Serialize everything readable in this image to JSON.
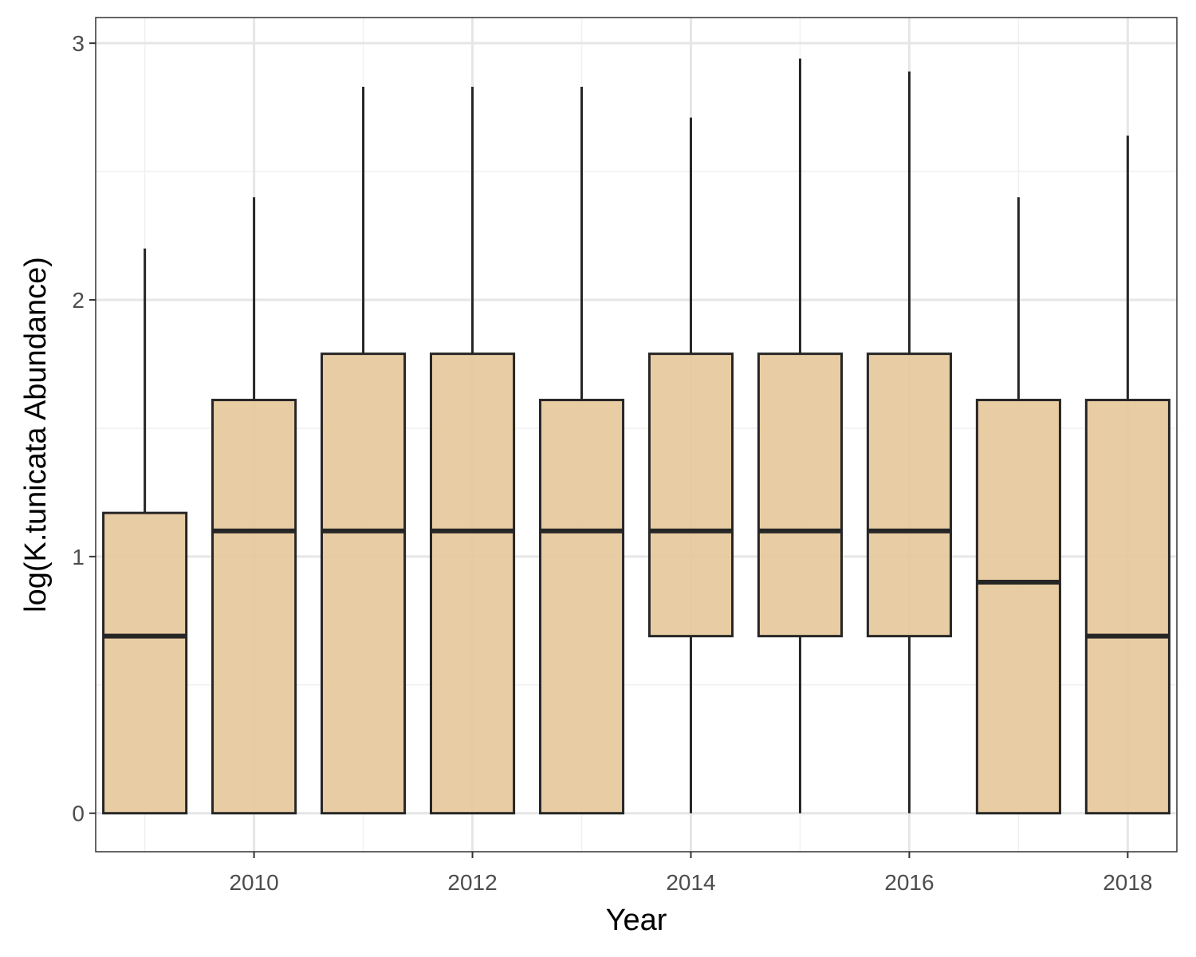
{
  "chart_data": {
    "type": "box",
    "xlabel": "Year",
    "ylabel": "log(K.tunicata Abundance)",
    "xlim": [
      2008.55,
      2018.45
    ],
    "ylim": [
      -0.15,
      3.1
    ],
    "x_ticks": [
      2010,
      2012,
      2014,
      2016,
      2018
    ],
    "y_ticks": [
      0,
      1,
      2,
      3
    ],
    "grid": true,
    "colors": {
      "box_fill": "#e6c89b",
      "box_stroke": "#262626",
      "grid_major": "#e6e6e6",
      "grid_minor": "#f0f0f0",
      "panel_border": "#333333"
    },
    "boxes": [
      {
        "x": 2009,
        "min": 0,
        "q1": 0,
        "median": 0.69,
        "q3": 1.17,
        "max": 2.2
      },
      {
        "x": 2010,
        "min": 0,
        "q1": 0,
        "median": 1.1,
        "q3": 1.61,
        "max": 2.4
      },
      {
        "x": 2011,
        "min": 0,
        "q1": 0,
        "median": 1.1,
        "q3": 1.79,
        "max": 2.83
      },
      {
        "x": 2012,
        "min": 0,
        "q1": 0,
        "median": 1.1,
        "q3": 1.79,
        "max": 2.83
      },
      {
        "x": 2013,
        "min": 0,
        "q1": 0,
        "median": 1.1,
        "q3": 1.61,
        "max": 2.83
      },
      {
        "x": 2014,
        "min": 0,
        "q1": 0.69,
        "median": 1.1,
        "q3": 1.79,
        "max": 2.71
      },
      {
        "x": 2015,
        "min": 0,
        "q1": 0.69,
        "median": 1.1,
        "q3": 1.79,
        "max": 2.94
      },
      {
        "x": 2016,
        "min": 0,
        "q1": 0.69,
        "median": 1.1,
        "q3": 1.79,
        "max": 2.89
      },
      {
        "x": 2017,
        "min": 0,
        "q1": 0,
        "median": 0.9,
        "q3": 1.61,
        "max": 2.4
      },
      {
        "x": 2018,
        "min": 0,
        "q1": 0,
        "median": 0.69,
        "q3": 1.61,
        "max": 2.64
      }
    ]
  }
}
